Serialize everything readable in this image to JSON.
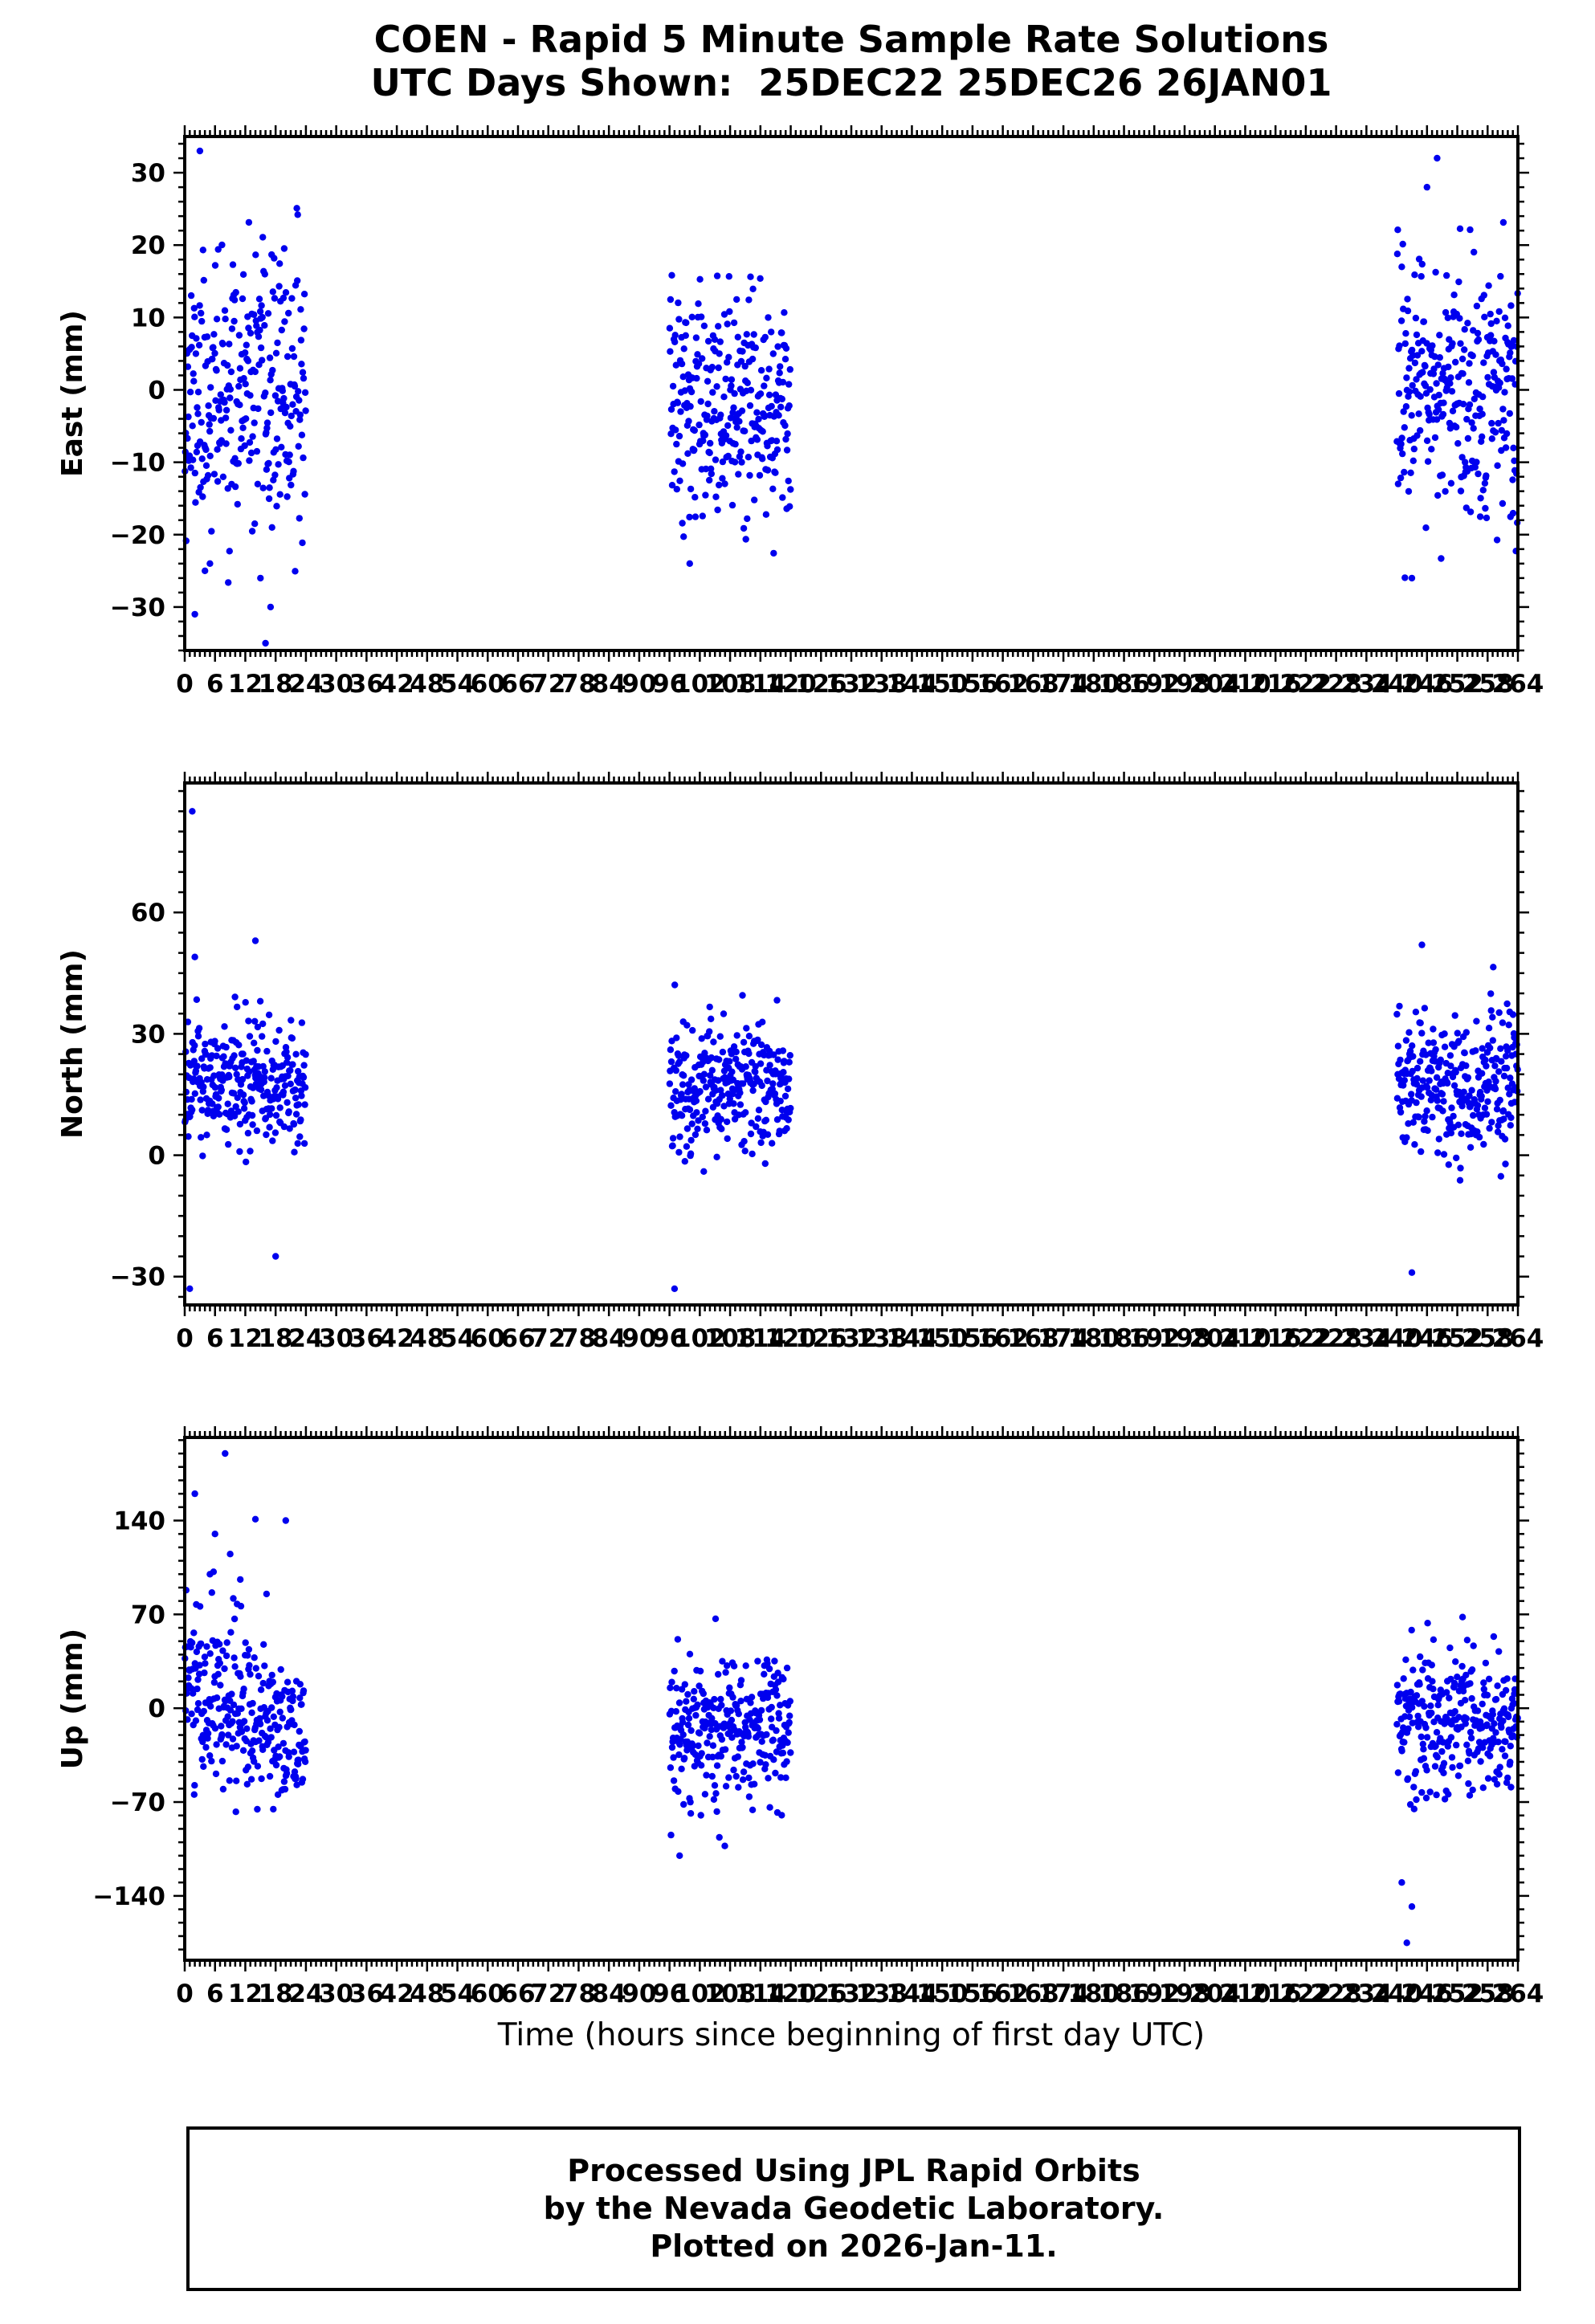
{
  "title": {
    "line1": "COEN - Rapid 5 Minute Sample Rate Solutions",
    "line2": "UTC Days Shown:  25DEC22 25DEC26 26JAN01"
  },
  "x_axis": {
    "label": "Time (hours since beginning of first day UTC)",
    "min": 0,
    "max": 264,
    "major_interval": 6,
    "minor_interval": 1,
    "tick_labels": [
      0,
      6,
      12,
      18,
      24,
      30,
      36,
      42,
      48,
      54,
      60,
      66,
      72,
      78,
      84,
      90,
      96,
      102,
      108,
      114,
      120,
      126,
      132,
      138,
      144,
      150,
      156,
      162,
      168,
      174,
      180,
      186,
      192,
      198,
      204,
      210,
      216,
      222,
      228,
      234,
      240,
      246,
      252,
      258,
      264
    ]
  },
  "footer": {
    "line1": "Processed Using JPL Rapid Orbits",
    "line2": "by the Nevada Geodetic Laboratory.",
    "line3": "Plotted on 2026-Jan-11."
  },
  "style": {
    "point_color": "#0000ee",
    "axis_color": "#000000",
    "background": "#ffffff"
  },
  "chart_data": [
    {
      "type": "scatter",
      "name": "east",
      "ylabel": "East (mm)",
      "ylim": [
        -36,
        35
      ],
      "yticks": [
        -30,
        -20,
        -10,
        0,
        10,
        20,
        30
      ],
      "y_minor_interval": 2,
      "clusters": [
        {
          "x_start": 0,
          "x_end": 24,
          "n": 288,
          "y_mean": -1,
          "y_std": 9,
          "y_drift": 0,
          "y_min": -32,
          "y_max": 33,
          "seed": 11
        },
        {
          "x_start": 96,
          "x_end": 120,
          "n": 288,
          "y_mean": -2,
          "y_std": 7.5,
          "y_drift": 0,
          "y_min": -24,
          "y_max": 23,
          "seed": 12
        },
        {
          "x_start": 240,
          "x_end": 264,
          "n": 288,
          "y_mean": -1,
          "y_std": 9,
          "y_drift": 0,
          "y_min": -26,
          "y_max": 32,
          "seed": 13
        }
      ],
      "outliers": [
        {
          "x": 3,
          "y": 33
        },
        {
          "x": 16,
          "y": -35
        },
        {
          "x": 17,
          "y": -30
        },
        {
          "x": 2,
          "y": -31
        },
        {
          "x": 5,
          "y": -24
        },
        {
          "x": 15,
          "y": -26
        },
        {
          "x": 4,
          "y": -25
        },
        {
          "x": 100,
          "y": -24
        },
        {
          "x": 243,
          "y": -26
        },
        {
          "x": 246,
          "y": 28
        },
        {
          "x": 248,
          "y": 32
        },
        {
          "x": 241,
          "y": 17
        }
      ]
    },
    {
      "type": "scatter",
      "name": "north",
      "ylabel": "North (mm)",
      "ylim": [
        -37,
        92
      ],
      "yticks": [
        -30,
        0,
        30,
        60
      ],
      "y_minor_interval": 5,
      "clusters": [
        {
          "x_start": 0,
          "x_end": 24,
          "n": 288,
          "y_mean": 18,
          "y_std": 8,
          "y_drift": 0,
          "y_min": -22,
          "y_max": 55,
          "seed": 21
        },
        {
          "x_start": 96,
          "x_end": 120,
          "n": 288,
          "y_mean": 17,
          "y_std": 8,
          "y_drift": 0,
          "y_min": -5,
          "y_max": 44,
          "seed": 22
        },
        {
          "x_start": 240,
          "x_end": 264,
          "n": 288,
          "y_mean": 17,
          "y_std": 9,
          "y_drift": 0,
          "y_min": -29,
          "y_max": 52,
          "seed": 23
        }
      ],
      "outliers": [
        {
          "x": 1.5,
          "y": 85
        },
        {
          "x": 1,
          "y": -33
        },
        {
          "x": 97,
          "y": -33
        },
        {
          "x": 18,
          "y": -25
        },
        {
          "x": 14,
          "y": 53
        },
        {
          "x": 243,
          "y": -29
        },
        {
          "x": 245,
          "y": 52
        },
        {
          "x": 2,
          "y": 49
        }
      ]
    },
    {
      "type": "scatter",
      "name": "up",
      "ylabel": "Up (mm)",
      "ylim": [
        -188,
        202
      ],
      "yticks": [
        -140,
        -70,
        0,
        70,
        140
      ],
      "y_minor_interval": 10,
      "clusters": [
        {
          "x_start": 0,
          "x_end": 24,
          "n": 288,
          "y_mean": -5,
          "y_std": 32,
          "y_drift": -55,
          "y_min": -78,
          "y_max": 165,
          "seed": 31
        },
        {
          "x_start": 96,
          "x_end": 120,
          "n": 288,
          "y_mean": -15,
          "y_std": 28,
          "y_drift": 0,
          "y_min": -110,
          "y_max": 88,
          "seed": 32
        },
        {
          "x_start": 240,
          "x_end": 264,
          "n": 288,
          "y_mean": -10,
          "y_std": 28,
          "y_drift": 0,
          "y_min": -120,
          "y_max": 88,
          "seed": 33
        }
      ],
      "outliers": [
        {
          "x": 2,
          "y": 160
        },
        {
          "x": 8,
          "y": 190
        },
        {
          "x": 6,
          "y": 130
        },
        {
          "x": 14,
          "y": 141
        },
        {
          "x": 20,
          "y": 140
        },
        {
          "x": 9,
          "y": 115
        },
        {
          "x": 5,
          "y": 100
        },
        {
          "x": 11,
          "y": 96
        },
        {
          "x": 242,
          "y": -175
        },
        {
          "x": 241,
          "y": -130
        },
        {
          "x": 243,
          "y": -148
        },
        {
          "x": 98,
          "y": -110
        }
      ]
    }
  ]
}
